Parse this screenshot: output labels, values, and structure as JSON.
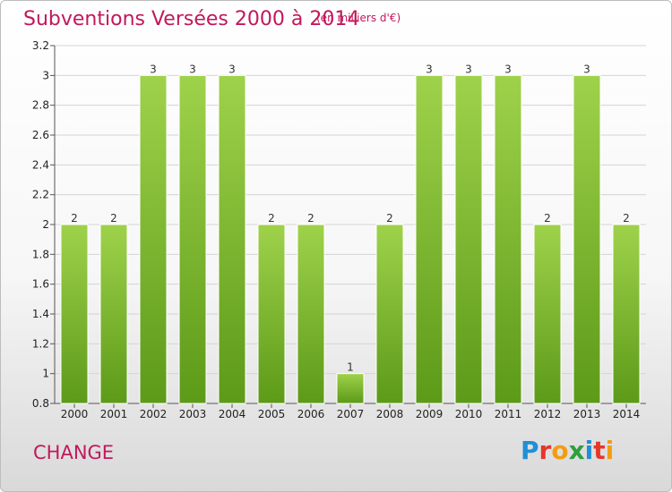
{
  "header": {
    "title": "Subventions Versées 2000 à 2014",
    "unit": "(en milliers d'€)"
  },
  "footer": {
    "commune": "CHANGE",
    "logo_letters": [
      "P",
      "r",
      "o",
      "x",
      "i",
      "t",
      "i"
    ],
    "logo_colors": [
      "#1f8fd6",
      "#e6362c",
      "#f39c12",
      "#2e9e3f",
      "#1f8fd6",
      "#e6362c",
      "#f39c12"
    ]
  },
  "chart_data": {
    "type": "bar",
    "categories": [
      "2000",
      "2001",
      "2002",
      "2003",
      "2004",
      "2005",
      "2006",
      "2007",
      "2008",
      "2009",
      "2010",
      "2011",
      "2012",
      "2013",
      "2014"
    ],
    "values": [
      2,
      2,
      3,
      3,
      3,
      2,
      2,
      1,
      2,
      3,
      3,
      3,
      2,
      3,
      2
    ],
    "value_labels": [
      "2",
      "2",
      "3",
      "3",
      "3",
      "2",
      "2",
      "1",
      "2",
      "3",
      "3",
      "3",
      "2",
      "3",
      "2"
    ],
    "title": "Subventions Versées 2000 à 2014",
    "ylim": [
      0.8,
      3.2
    ],
    "yticks": [
      0.8,
      1,
      1.2,
      1.4,
      1.6,
      1.8,
      2,
      2.2,
      2.4,
      2.6,
      2.8,
      3,
      3.2
    ],
    "ytick_labels": [
      "0.8",
      "1",
      "1.2",
      "1.4",
      "1.6",
      "1.8",
      "2",
      "2.2",
      "2.4",
      "2.6",
      "2.8",
      "3",
      "3.2"
    ],
    "grid": "horizontal",
    "bar_color": "#7dbb2e"
  }
}
